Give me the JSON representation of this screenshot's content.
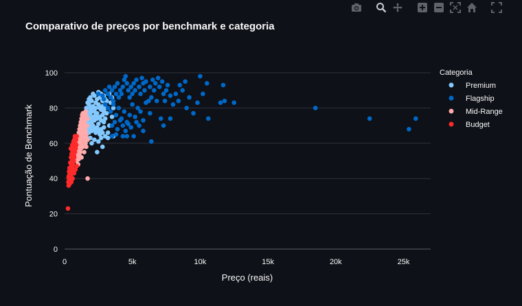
{
  "chart_data": {
    "type": "scatter",
    "title": "Comparativo de preços por benchmark e categoria",
    "xlabel": "Preço (reais)",
    "ylabel": "Pontuação de Benchmark",
    "xlim": [
      0,
      27000
    ],
    "ylim": [
      0,
      100
    ],
    "x_ticks": [
      0,
      5000,
      10000,
      15000,
      20000,
      25000
    ],
    "x_tick_labels": [
      "0",
      "5k",
      "10k",
      "15k",
      "20k",
      "25k"
    ],
    "y_ticks": [
      0,
      20,
      40,
      60,
      80,
      100
    ],
    "y_tick_labels": [
      "0",
      "20",
      "40",
      "60",
      "80",
      "100"
    ],
    "grid": "horizontal",
    "legend": {
      "title": "Categoria",
      "placement": "top-right"
    },
    "series": [
      {
        "name": "Premium",
        "color": "#83c9ff",
        "points": [
          [
            1700,
            83
          ],
          [
            1800,
            85
          ],
          [
            1900,
            86
          ],
          [
            2000,
            84
          ],
          [
            2100,
            88
          ],
          [
            2200,
            87
          ],
          [
            2300,
            83
          ],
          [
            2400,
            85
          ],
          [
            2500,
            89
          ],
          [
            2600,
            86
          ],
          [
            2700,
            88
          ],
          [
            2800,
            84
          ],
          [
            2900,
            87
          ],
          [
            3000,
            85
          ],
          [
            3100,
            84
          ],
          [
            1600,
            80
          ],
          [
            1700,
            78
          ],
          [
            1800,
            82
          ],
          [
            1900,
            80
          ],
          [
            2000,
            79
          ],
          [
            2100,
            81
          ],
          [
            2200,
            78
          ],
          [
            2300,
            80
          ],
          [
            2400,
            77
          ],
          [
            2500,
            82
          ],
          [
            2600,
            80
          ],
          [
            2700,
            79
          ],
          [
            2800,
            81
          ],
          [
            2900,
            78
          ],
          [
            3000,
            80
          ],
          [
            1600,
            75
          ],
          [
            1700,
            73
          ],
          [
            1800,
            76
          ],
          [
            1900,
            74
          ],
          [
            2000,
            72
          ],
          [
            2100,
            75
          ],
          [
            2200,
            73
          ],
          [
            2300,
            76
          ],
          [
            2400,
            74
          ],
          [
            2500,
            71
          ],
          [
            2600,
            75
          ],
          [
            2700,
            73
          ],
          [
            2800,
            76
          ],
          [
            2900,
            72
          ],
          [
            3000,
            74
          ],
          [
            1600,
            70
          ],
          [
            1700,
            68
          ],
          [
            1800,
            71
          ],
          [
            1900,
            69
          ],
          [
            2000,
            67
          ],
          [
            2100,
            70
          ],
          [
            2200,
            68
          ],
          [
            2300,
            66
          ],
          [
            2400,
            69
          ],
          [
            2500,
            67
          ],
          [
            2600,
            65
          ],
          [
            2700,
            68
          ],
          [
            2800,
            66
          ],
          [
            3000,
            64
          ],
          [
            3200,
            66
          ],
          [
            3300,
            70
          ],
          [
            3500,
            75
          ],
          [
            3600,
            80
          ],
          [
            3400,
            83
          ],
          [
            3100,
            77
          ],
          [
            2900,
            69
          ],
          [
            2700,
            63
          ],
          [
            2500,
            61
          ],
          [
            2400,
            55
          ],
          [
            2800,
            58
          ],
          [
            3200,
            63
          ],
          [
            3600,
            64
          ],
          [
            2200,
            62
          ],
          [
            2000,
            60
          ],
          [
            1900,
            63
          ],
          [
            1800,
            66
          ],
          [
            1650,
            72
          ],
          [
            1550,
            77
          ],
          [
            3300,
            88
          ],
          [
            3500,
            86
          ],
          [
            1900,
            77
          ]
        ]
      },
      {
        "name": "Flagship",
        "color": "#0068c9",
        "points": [
          [
            2500,
            88
          ],
          [
            2800,
            87
          ],
          [
            3000,
            90
          ],
          [
            3200,
            88
          ],
          [
            3300,
            92
          ],
          [
            3400,
            86
          ],
          [
            3500,
            90
          ],
          [
            3600,
            84
          ],
          [
            3700,
            92
          ],
          [
            3800,
            88
          ],
          [
            3900,
            94
          ],
          [
            4000,
            86
          ],
          [
            4100,
            90
          ],
          [
            4200,
            88
          ],
          [
            4300,
            92
          ],
          [
            4400,
            96
          ],
          [
            4500,
            98
          ],
          [
            4600,
            94
          ],
          [
            4700,
            90
          ],
          [
            4800,
            86
          ],
          [
            4900,
            92
          ],
          [
            5000,
            88
          ],
          [
            5100,
            94
          ],
          [
            5200,
            90
          ],
          [
            5300,
            96
          ],
          [
            5500,
            92
          ],
          [
            5600,
            88
          ],
          [
            5700,
            97
          ],
          [
            5800,
            94
          ],
          [
            5900,
            90
          ],
          [
            6000,
            95
          ],
          [
            6200,
            84
          ],
          [
            6300,
            92
          ],
          [
            6400,
            86
          ],
          [
            6500,
            96
          ],
          [
            6600,
            90
          ],
          [
            6700,
            94
          ],
          [
            6800,
            84
          ],
          [
            6900,
            97
          ],
          [
            7000,
            92
          ],
          [
            7200,
            95
          ],
          [
            7300,
            88
          ],
          [
            7400,
            84
          ],
          [
            7500,
            90
          ],
          [
            7600,
            93
          ],
          [
            7800,
            87
          ],
          [
            8000,
            82
          ],
          [
            8200,
            88
          ],
          [
            8400,
            84
          ],
          [
            8500,
            93
          ],
          [
            8700,
            90
          ],
          [
            8900,
            95
          ],
          [
            9000,
            80
          ],
          [
            9200,
            86
          ],
          [
            9500,
            77
          ],
          [
            9800,
            83
          ],
          [
            10000,
            98
          ],
          [
            10200,
            88
          ],
          [
            10500,
            94
          ],
          [
            10600,
            74
          ],
          [
            11500,
            83
          ],
          [
            11700,
            93
          ],
          [
            11800,
            84
          ],
          [
            12500,
            83
          ],
          [
            3200,
            80
          ],
          [
            3400,
            78
          ],
          [
            3600,
            82
          ],
          [
            3800,
            76
          ],
          [
            4000,
            80
          ],
          [
            4200,
            74
          ],
          [
            4400,
            78
          ],
          [
            4600,
            72
          ],
          [
            4800,
            76
          ],
          [
            5000,
            82
          ],
          [
            5200,
            75
          ],
          [
            5400,
            80
          ],
          [
            5600,
            78
          ],
          [
            5800,
            73
          ],
          [
            6000,
            83
          ],
          [
            6300,
            77
          ],
          [
            3500,
            70
          ],
          [
            3700,
            72
          ],
          [
            3900,
            68
          ],
          [
            4100,
            73
          ],
          [
            4300,
            70
          ],
          [
            4500,
            67
          ],
          [
            4700,
            71
          ],
          [
            4900,
            69
          ],
          [
            5100,
            64
          ],
          [
            5300,
            72
          ],
          [
            5500,
            70
          ],
          [
            5800,
            67
          ],
          [
            3500,
            64
          ],
          [
            3800,
            65
          ],
          [
            4300,
            64
          ],
          [
            4600,
            64
          ],
          [
            6400,
            61
          ],
          [
            7100,
            74
          ],
          [
            7300,
            70
          ],
          [
            7800,
            74
          ],
          [
            3000,
            82
          ],
          [
            2900,
            85
          ],
          [
            18500,
            80
          ],
          [
            22500,
            74
          ],
          [
            25400,
            68
          ],
          [
            25900,
            74
          ]
        ]
      },
      {
        "name": "Mid-Range",
        "color": "#ffabab",
        "points": [
          [
            800,
            55
          ],
          [
            850,
            58
          ],
          [
            900,
            60
          ],
          [
            950,
            62
          ],
          [
            1000,
            64
          ],
          [
            1050,
            66
          ],
          [
            1100,
            68
          ],
          [
            1150,
            70
          ],
          [
            1200,
            72
          ],
          [
            1250,
            74
          ],
          [
            1300,
            76
          ],
          [
            1350,
            75
          ],
          [
            1400,
            73
          ],
          [
            1450,
            71
          ],
          [
            1500,
            69
          ],
          [
            1550,
            67
          ],
          [
            1600,
            65
          ],
          [
            900,
            50
          ],
          [
            950,
            52
          ],
          [
            1000,
            54
          ],
          [
            1050,
            56
          ],
          [
            1100,
            58
          ],
          [
            1150,
            60
          ],
          [
            1200,
            62
          ],
          [
            1250,
            64
          ],
          [
            1300,
            66
          ],
          [
            1350,
            68
          ],
          [
            1400,
            70
          ],
          [
            1450,
            72
          ],
          [
            1500,
            74
          ],
          [
            1550,
            76
          ],
          [
            1000,
            48
          ],
          [
            1050,
            51
          ],
          [
            1100,
            53
          ],
          [
            1150,
            55
          ],
          [
            1200,
            57
          ],
          [
            1250,
            59
          ],
          [
            1300,
            61
          ],
          [
            1350,
            63
          ],
          [
            1400,
            65
          ],
          [
            1450,
            67
          ],
          [
            1500,
            62
          ],
          [
            1550,
            60
          ],
          [
            1600,
            58
          ],
          [
            1650,
            70
          ],
          [
            1700,
            74
          ],
          [
            1200,
            66
          ],
          [
            1300,
            70
          ],
          [
            1400,
            68
          ],
          [
            1500,
            66
          ],
          [
            1600,
            64
          ],
          [
            1700,
            62
          ],
          [
            1100,
            63
          ],
          [
            1000,
            59
          ],
          [
            950,
            57
          ],
          [
            1700,
            40
          ],
          [
            1450,
            55
          ],
          [
            1350,
            58
          ],
          [
            1250,
            52
          ],
          [
            1150,
            65
          ],
          [
            1050,
            61
          ],
          [
            1350,
            77
          ],
          [
            1550,
            78
          ],
          [
            1250,
            69
          ]
        ]
      },
      {
        "name": "Budget",
        "color": "#ff2b2b",
        "points": [
          [
            250,
            23
          ],
          [
            300,
            36
          ],
          [
            280,
            38
          ],
          [
            320,
            40
          ],
          [
            350,
            42
          ],
          [
            380,
            37
          ],
          [
            400,
            44
          ],
          [
            420,
            40
          ],
          [
            450,
            46
          ],
          [
            480,
            42
          ],
          [
            500,
            48
          ],
          [
            520,
            44
          ],
          [
            550,
            50
          ],
          [
            580,
            46
          ],
          [
            600,
            52
          ],
          [
            620,
            48
          ],
          [
            650,
            54
          ],
          [
            680,
            50
          ],
          [
            700,
            56
          ],
          [
            720,
            52
          ],
          [
            750,
            58
          ],
          [
            770,
            55
          ],
          [
            800,
            60
          ],
          [
            820,
            57
          ],
          [
            850,
            62
          ],
          [
            870,
            59
          ],
          [
            900,
            64
          ],
          [
            350,
            39
          ],
          [
            400,
            41
          ],
          [
            450,
            43
          ],
          [
            500,
            45
          ],
          [
            550,
            47
          ],
          [
            600,
            49
          ],
          [
            650,
            51
          ],
          [
            700,
            53
          ],
          [
            750,
            55
          ],
          [
            800,
            57
          ],
          [
            850,
            59
          ],
          [
            300,
            41
          ],
          [
            330,
            44
          ],
          [
            360,
            46
          ],
          [
            420,
            49
          ],
          [
            470,
            52
          ],
          [
            520,
            54
          ],
          [
            570,
            56
          ],
          [
            620,
            58
          ],
          [
            670,
            60
          ],
          [
            720,
            62
          ],
          [
            760,
            64
          ],
          [
            500,
            38
          ],
          [
            600,
            40
          ],
          [
            700,
            43
          ],
          [
            800,
            45
          ],
          [
            900,
            47
          ],
          [
            460,
            57
          ],
          [
            560,
            59
          ],
          [
            660,
            61
          ],
          [
            780,
            63
          ]
        ]
      }
    ]
  }
}
